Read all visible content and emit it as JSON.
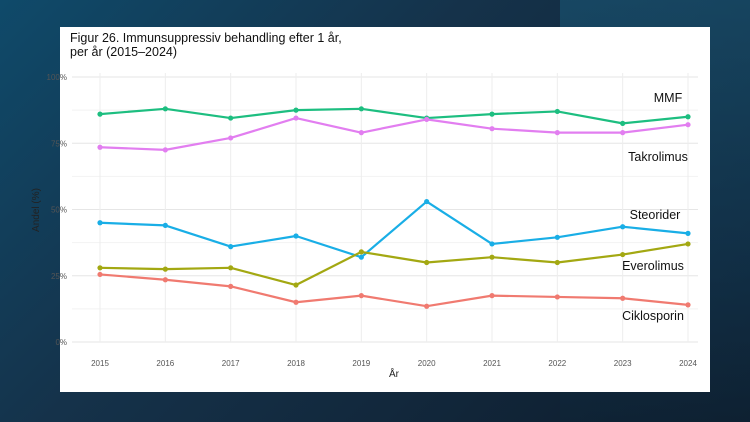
{
  "chart_data": {
    "type": "line",
    "title": "Figur 26. Immunsuppressiv behandling efter 1 år,",
    "subtitle": "per år (2015–2024)",
    "xlabel": "År",
    "ylabel": "Andel (%)",
    "x": [
      2015,
      2016,
      2017,
      2018,
      2019,
      2020,
      2021,
      2022,
      2023,
      2024
    ],
    "y_ticks": [
      "0%",
      "25%",
      "50%",
      "75%",
      "100%"
    ],
    "ylim": [
      0,
      100
    ],
    "grid": true,
    "legend": "direct labels at right",
    "series": [
      {
        "name": "MMF",
        "color": "#1dbe80",
        "values": [
          86,
          88,
          84.5,
          87.5,
          88,
          84.5,
          86,
          87,
          82.5,
          85
        ]
      },
      {
        "name": "Takrolimus",
        "color": "#e27ef0",
        "values": [
          73.5,
          72.5,
          77,
          84.5,
          79,
          84,
          80.5,
          79,
          79,
          82
        ]
      },
      {
        "name": "Steorider",
        "color": "#19aee6",
        "values": [
          45,
          44,
          36,
          40,
          32,
          53,
          37,
          39.5,
          43.5,
          41
        ]
      },
      {
        "name": "Everolimus",
        "color": "#a3a812",
        "values": [
          28,
          27.5,
          28,
          21.5,
          34,
          30,
          32,
          30,
          33,
          37
        ]
      },
      {
        "name": "Ciklosporin",
        "color": "#f07a70",
        "values": [
          25.5,
          23.5,
          21,
          15,
          17.5,
          13.5,
          17.5,
          17,
          16.5,
          14
        ]
      }
    ]
  }
}
